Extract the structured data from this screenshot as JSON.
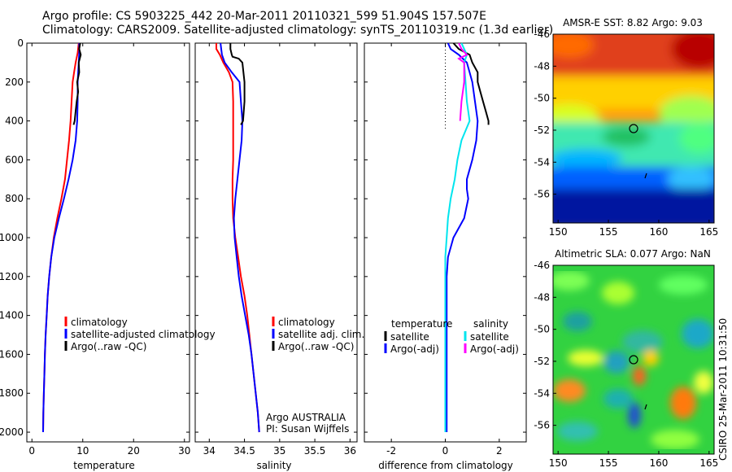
{
  "header": {
    "line1": "Argo profile: CS 5903225_442 20-Mar-2011 20110321_599 51.904S 157.507E",
    "line2": "Climatology: CARS2009. Satellite-adjusted climatology: synTS_20110319.nc (1.3d earlier)"
  },
  "credit": "CSIRO 25-Mar-2011 10:31:50",
  "chart_data": [
    {
      "type": "line",
      "id": "temperature",
      "xlabel": "temperature",
      "ylabel": "",
      "xlim": [
        -1,
        31
      ],
      "ylim": [
        2050,
        0
      ],
      "xticks": [
        0,
        10,
        20,
        30
      ],
      "yticks": [
        0,
        200,
        400,
        600,
        800,
        1000,
        1200,
        1400,
        1600,
        1800,
        2000
      ],
      "legend": [
        "climatology",
        "satellite-adjusted climatology",
        "Argo(..raw -QC)"
      ],
      "legend_placement": "lower-center",
      "series": [
        {
          "name": "climatology",
          "color": "#ff0000",
          "points": [
            [
              9.2,
              0
            ],
            [
              9.0,
              50
            ],
            [
              8.6,
              100
            ],
            [
              8.3,
              150
            ],
            [
              8.0,
              200
            ],
            [
              7.8,
              300
            ],
            [
              7.6,
              400
            ],
            [
              7.3,
              500
            ],
            [
              6.9,
              600
            ],
            [
              6.5,
              700
            ],
            [
              5.8,
              800
            ],
            [
              5.0,
              900
            ],
            [
              4.3,
              1000
            ],
            [
              3.8,
              1100
            ],
            [
              3.4,
              1200
            ],
            [
              3.1,
              1300
            ],
            [
              2.9,
              1400
            ],
            [
              2.7,
              1500
            ],
            [
              2.55,
              1600
            ],
            [
              2.45,
              1700
            ],
            [
              2.35,
              1800
            ],
            [
              2.25,
              1900
            ],
            [
              2.2,
              2000
            ]
          ]
        },
        {
          "name": "satellite-adjusted climatology",
          "color": "#0000ff",
          "points": [
            [
              9.3,
              0
            ],
            [
              9.3,
              50
            ],
            [
              9.2,
              100
            ],
            [
              9.1,
              150
            ],
            [
              9.0,
              200
            ],
            [
              9.0,
              300
            ],
            [
              8.9,
              400
            ],
            [
              8.6,
              500
            ],
            [
              8.0,
              600
            ],
            [
              7.2,
              700
            ],
            [
              6.3,
              800
            ],
            [
              5.3,
              900
            ],
            [
              4.4,
              1000
            ],
            [
              3.8,
              1100
            ],
            [
              3.4,
              1200
            ],
            [
              3.1,
              1300
            ],
            [
              2.9,
              1400
            ],
            [
              2.7,
              1500
            ],
            [
              2.55,
              1600
            ],
            [
              2.45,
              1700
            ],
            [
              2.35,
              1800
            ],
            [
              2.25,
              1900
            ],
            [
              2.2,
              2000
            ]
          ]
        },
        {
          "name": "Argo(..raw -QC)",
          "color": "#000000",
          "points": [
            [
              9.5,
              0
            ],
            [
              9.3,
              30
            ],
            [
              9.6,
              60
            ],
            [
              9.2,
              100
            ],
            [
              9.3,
              150
            ],
            [
              8.9,
              200
            ],
            [
              9.1,
              250
            ],
            [
              8.8,
              300
            ],
            [
              8.6,
              350
            ],
            [
              8.4,
              400
            ],
            [
              8.2,
              420
            ]
          ]
        }
      ]
    },
    {
      "type": "line",
      "id": "salinity",
      "xlabel": "salinity",
      "ylabel": "",
      "xlim": [
        33.8,
        36.1
      ],
      "ylim": [
        2050,
        0
      ],
      "xticks": [
        34,
        34.5,
        35,
        35.5,
        36
      ],
      "legend": [
        "climatology",
        "satellite adj. clim.",
        "Argo(..raw -QC)"
      ],
      "legend_placement": "lower-center",
      "annotation": [
        "Argo AUSTRALIA",
        "PI: Susan Wijffels"
      ],
      "series": [
        {
          "name": "climatology",
          "color": "#ff0000",
          "points": [
            [
              34.1,
              0
            ],
            [
              34.1,
              30
            ],
            [
              34.15,
              60
            ],
            [
              34.2,
              100
            ],
            [
              34.28,
              150
            ],
            [
              34.33,
              200
            ],
            [
              34.34,
              300
            ],
            [
              34.34,
              400
            ],
            [
              34.34,
              500
            ],
            [
              34.34,
              600
            ],
            [
              34.33,
              700
            ],
            [
              34.33,
              800
            ],
            [
              34.34,
              900
            ],
            [
              34.37,
              1000
            ],
            [
              34.41,
              1100
            ],
            [
              34.45,
              1200
            ],
            [
              34.5,
              1300
            ],
            [
              34.54,
              1400
            ],
            [
              34.57,
              1500
            ],
            [
              34.6,
              1600
            ],
            [
              34.63,
              1700
            ],
            [
              34.66,
              1800
            ],
            [
              34.69,
              1900
            ],
            [
              34.71,
              2000
            ]
          ]
        },
        {
          "name": "satellite adj. clim.",
          "color": "#0000ff",
          "points": [
            [
              34.16,
              0
            ],
            [
              34.17,
              30
            ],
            [
              34.18,
              60
            ],
            [
              34.22,
              100
            ],
            [
              34.32,
              150
            ],
            [
              34.43,
              200
            ],
            [
              34.45,
              300
            ],
            [
              34.47,
              400
            ],
            [
              34.46,
              500
            ],
            [
              34.43,
              600
            ],
            [
              34.4,
              700
            ],
            [
              34.37,
              800
            ],
            [
              34.35,
              900
            ],
            [
              34.36,
              1000
            ],
            [
              34.39,
              1100
            ],
            [
              34.42,
              1200
            ],
            [
              34.46,
              1300
            ],
            [
              34.51,
              1400
            ],
            [
              34.56,
              1500
            ],
            [
              34.6,
              1600
            ],
            [
              34.63,
              1700
            ],
            [
              34.66,
              1800
            ],
            [
              34.69,
              1900
            ],
            [
              34.71,
              2000
            ]
          ]
        },
        {
          "name": "Argo(..raw -QC)",
          "color": "#000000",
          "points": [
            [
              34.3,
              0
            ],
            [
              34.3,
              30
            ],
            [
              34.32,
              60
            ],
            [
              34.33,
              70
            ],
            [
              34.42,
              80
            ],
            [
              34.47,
              100
            ],
            [
              34.5,
              200
            ],
            [
              34.5,
              300
            ],
            [
              34.48,
              400
            ],
            [
              34.45,
              420
            ]
          ]
        }
      ]
    },
    {
      "type": "line",
      "id": "difference",
      "xlabel": "difference from climatology",
      "ylabel": "",
      "xlim": [
        -3,
        3
      ],
      "ylim": [
        2050,
        0
      ],
      "xticks": [
        -2,
        0,
        2
      ],
      "legend_groups": [
        {
          "title": "temperature",
          "entries": [
            "satellite",
            "Argo(-adj)"
          ]
        },
        {
          "title": "salinity",
          "entries": [
            "satellite",
            "Argo(-adj)"
          ]
        }
      ],
      "legend_placement": "lower-center",
      "series": [
        {
          "name": "temperature satellite",
          "color": "#0000ff",
          "points": [
            [
              0.1,
              0
            ],
            [
              0.2,
              30
            ],
            [
              0.5,
              60
            ],
            [
              0.8,
              100
            ],
            [
              0.9,
              150
            ],
            [
              1.0,
              200
            ],
            [
              1.1,
              300
            ],
            [
              1.2,
              400
            ],
            [
              1.15,
              500
            ],
            [
              1.0,
              600
            ],
            [
              0.8,
              700
            ],
            [
              0.8,
              750
            ],
            [
              0.85,
              800
            ],
            [
              0.7,
              900
            ],
            [
              0.3,
              1000
            ],
            [
              0.1,
              1100
            ],
            [
              0.05,
              1200
            ],
            [
              0.05,
              1400
            ],
            [
              0.05,
              1600
            ],
            [
              0.05,
              1800
            ],
            [
              0.05,
              2000
            ]
          ]
        },
        {
          "name": "temperature Argo(-adj)",
          "color": "#000000",
          "points": [
            [
              0.3,
              0
            ],
            [
              0.5,
              30
            ],
            [
              0.9,
              60
            ],
            [
              1.0,
              100
            ],
            [
              1.2,
              150
            ],
            [
              1.2,
              200
            ],
            [
              1.3,
              250
            ],
            [
              1.4,
              300
            ],
            [
              1.5,
              350
            ],
            [
              1.6,
              400
            ],
            [
              1.6,
              420
            ]
          ]
        },
        {
          "name": "salinity satellite",
          "color": "#00e5ee",
          "points": [
            [
              0.6,
              0
            ],
            [
              0.7,
              30
            ],
            [
              0.8,
              60
            ],
            [
              0.7,
              100
            ],
            [
              0.75,
              200
            ],
            [
              0.8,
              300
            ],
            [
              0.9,
              400
            ],
            [
              0.6,
              500
            ],
            [
              0.45,
              600
            ],
            [
              0.35,
              700
            ],
            [
              0.2,
              800
            ],
            [
              0.1,
              900
            ],
            [
              0.05,
              1000
            ],
            [
              0.0,
              1100
            ],
            [
              0.0,
              1300
            ],
            [
              0.0,
              1600
            ],
            [
              0.0,
              1800
            ],
            [
              0.0,
              2000
            ]
          ]
        },
        {
          "name": "salinity Argo(-adj)",
          "color": "#ff00ff",
          "points": [
            [
              0.5,
              0
            ],
            [
              0.6,
              30
            ],
            [
              0.8,
              60
            ],
            [
              0.5,
              80
            ],
            [
              0.7,
              100
            ],
            [
              0.7,
              200
            ],
            [
              0.6,
              300
            ],
            [
              0.55,
              400
            ]
          ]
        }
      ]
    },
    {
      "type": "heatmap",
      "id": "sst",
      "title": "AMSR-E SST: 8.82 Argo: 9.03",
      "xlim": [
        149.5,
        165.5
      ],
      "ylim": [
        -57.8,
        -46
      ],
      "xticks": [
        150,
        155,
        160,
        165
      ],
      "yticks": [
        -46,
        -48,
        -50,
        -52,
        -54,
        -56
      ],
      "marker": {
        "lon": 157.5,
        "lat": -51.9
      }
    },
    {
      "type": "heatmap",
      "id": "sla",
      "title": "Altimetric SLA: 0.077 Argo: NaN",
      "xlim": [
        149.5,
        165.5
      ],
      "ylim": [
        -57.8,
        -46
      ],
      "xticks": [
        150,
        155,
        160,
        165
      ],
      "yticks": [
        -46,
        -48,
        -50,
        -52,
        -54,
        -56
      ],
      "marker": {
        "lon": 157.5,
        "lat": -51.9
      }
    }
  ]
}
